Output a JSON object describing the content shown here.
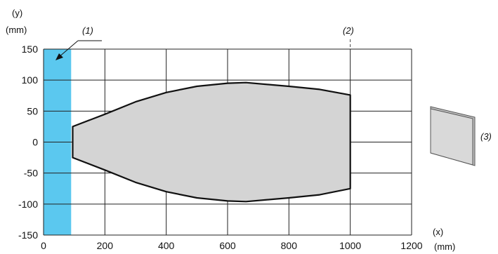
{
  "chart_data": {
    "type": "area",
    "title": "",
    "xlabel": "(x)",
    "xunit": "(mm)",
    "ylabel": "(y)",
    "yunit": "(mm)",
    "xlim": [
      0,
      1200
    ],
    "ylim": [
      -150,
      150
    ],
    "x_ticks": [
      0,
      200,
      400,
      600,
      800,
      1000,
      1200
    ],
    "y_ticks": [
      150,
      100,
      50,
      0,
      -50,
      -100,
      -150
    ],
    "grid": true,
    "excluded_zone": {
      "x_from": 0,
      "x_to": 90,
      "color": "#5bc8ef",
      "label": "(1)"
    },
    "max_range_line": {
      "x": 1000,
      "label": "(2)"
    },
    "target_label": "(3)",
    "series": [
      {
        "fill_color": "#d4d4d4",
        "points": [
          {
            "x": 95,
            "y": 25
          },
          {
            "x": 200,
            "y": 45
          },
          {
            "x": 300,
            "y": 65
          },
          {
            "x": 400,
            "y": 80
          },
          {
            "x": 500,
            "y": 90
          },
          {
            "x": 600,
            "y": 95
          },
          {
            "x": 660,
            "y": 96
          },
          {
            "x": 800,
            "y": 90
          },
          {
            "x": 900,
            "y": 85
          },
          {
            "x": 1000,
            "y": 76
          },
          {
            "x": 1000,
            "y": -75
          },
          {
            "x": 900,
            "y": -85
          },
          {
            "x": 800,
            "y": -90
          },
          {
            "x": 660,
            "y": -96
          },
          {
            "x": 600,
            "y": -95
          },
          {
            "x": 500,
            "y": -90
          },
          {
            "x": 400,
            "y": -80
          },
          {
            "x": 300,
            "y": -65
          },
          {
            "x": 200,
            "y": -45
          },
          {
            "x": 95,
            "y": -25
          }
        ]
      }
    ]
  }
}
